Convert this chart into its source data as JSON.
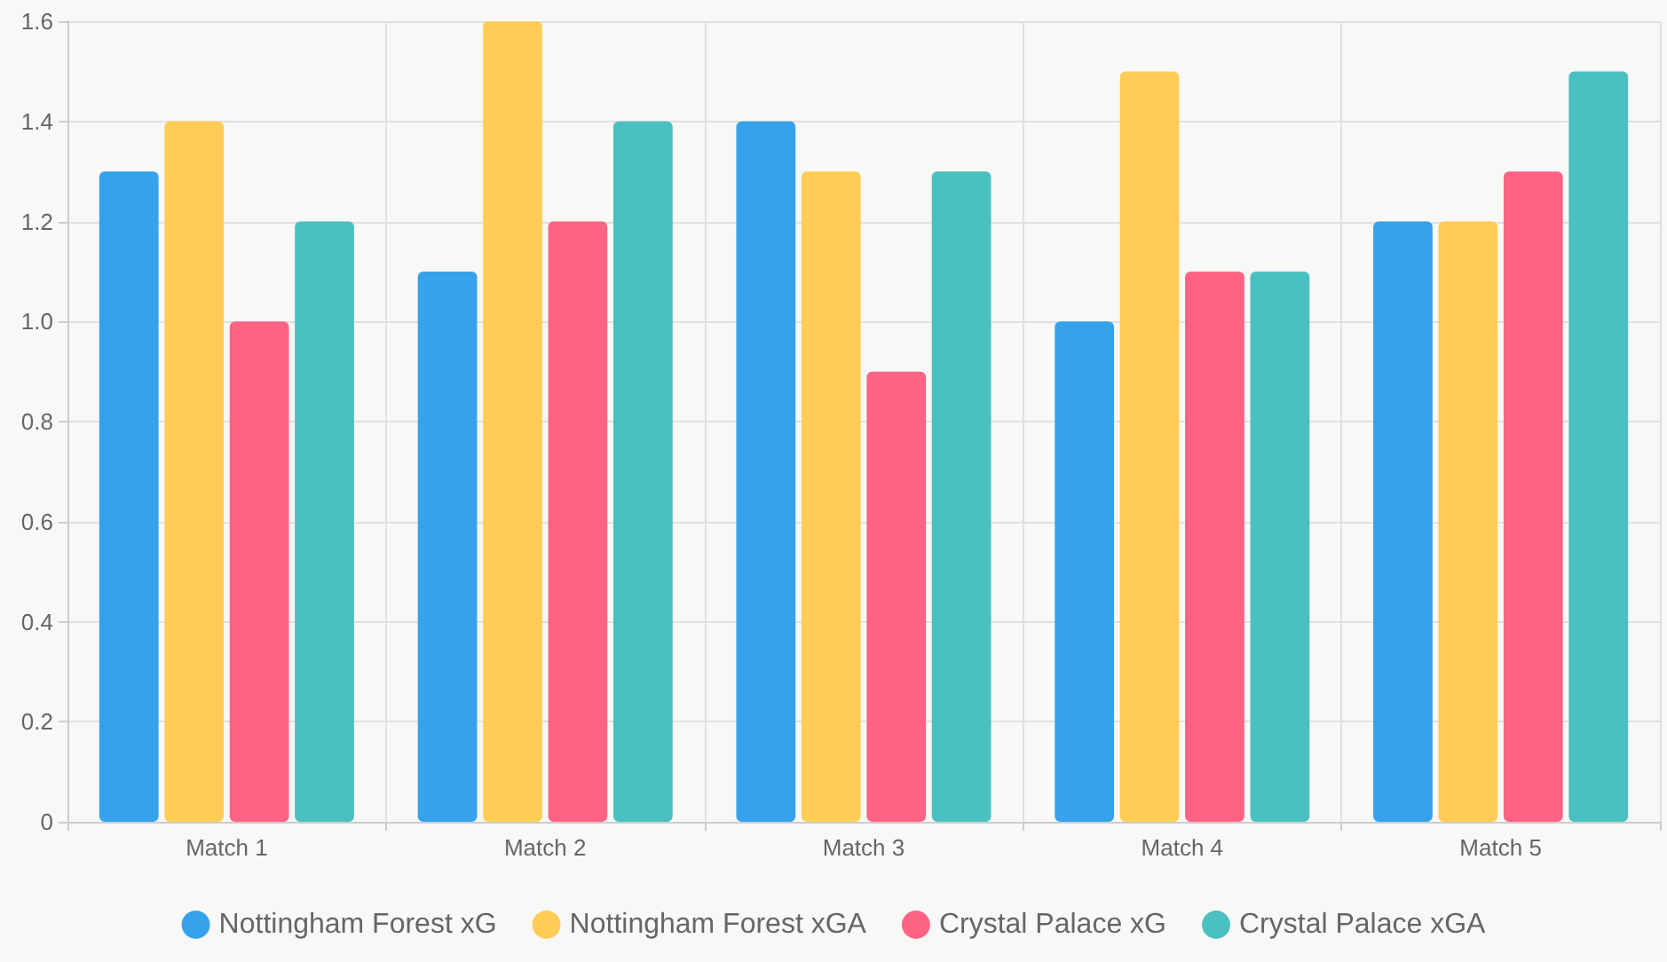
{
  "chart_data": {
    "type": "bar",
    "categories": [
      "Match 1",
      "Match 2",
      "Match 3",
      "Match 4",
      "Match 5"
    ],
    "series": [
      {
        "name": "Nottingham Forest xG",
        "color": "#36a2eb",
        "values": [
          1.3,
          1.1,
          1.4,
          1.0,
          1.2
        ]
      },
      {
        "name": "Nottingham Forest xGA",
        "color": "#ffcd56",
        "values": [
          1.4,
          1.6,
          1.3,
          1.5,
          1.2
        ]
      },
      {
        "name": "Crystal Palace xG",
        "color": "#ff6384",
        "values": [
          1.0,
          1.2,
          0.9,
          1.1,
          1.3
        ]
      },
      {
        "name": "Crystal Palace xGA",
        "color": "#4bc0c0",
        "values": [
          1.2,
          1.4,
          1.3,
          1.1,
          1.5
        ]
      }
    ],
    "ylim": [
      0,
      1.6
    ],
    "yticks": [
      0,
      0.2,
      0.4,
      0.6,
      0.8,
      {
        "value": 1,
        "label": "1.0"
      },
      1.2,
      1.4,
      1.6
    ],
    "grid": true,
    "legend": "bottom"
  }
}
